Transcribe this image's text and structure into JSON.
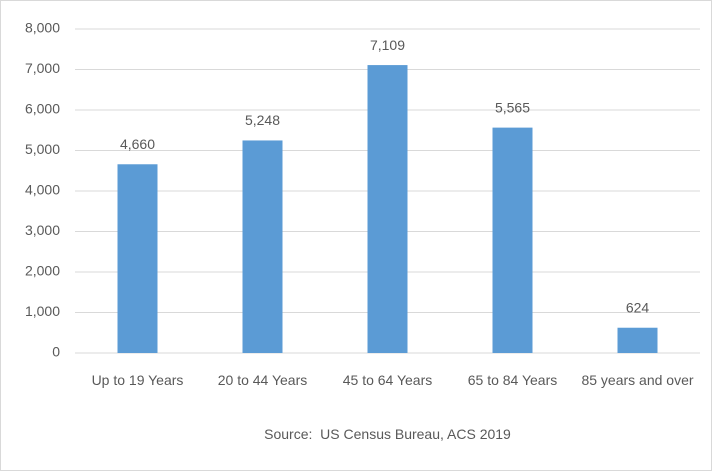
{
  "chart_data": {
    "type": "bar",
    "categories": [
      "Up to 19 Years",
      "20 to 44 Years",
      "45 to 64 Years",
      "65 to 84 Years",
      "85 years and over"
    ],
    "values": [
      4660,
      5248,
      7109,
      5565,
      624
    ],
    "value_labels": [
      "4,660",
      "5,248",
      "7,109",
      "5,565",
      "624"
    ],
    "color": "#5b9bd5",
    "ylim": [
      0,
      8000
    ],
    "yticks": [
      0,
      {
        "value": 1000,
        "label": "1,000"
      },
      {
        "value": 2000,
        "label": "2,000"
      },
      {
        "value": 3000,
        "label": "3,000"
      },
      {
        "value": 4000,
        "label": "4,000"
      },
      {
        "value": 5000,
        "label": "5,000"
      },
      {
        "value": 6000,
        "label": "6,000"
      },
      {
        "value": 7000,
        "label": "7,000"
      },
      {
        "value": 8000,
        "label": "8,000"
      }
    ],
    "grid": true,
    "x_label": "Source:  US Census Bureau, ACS 2019"
  }
}
